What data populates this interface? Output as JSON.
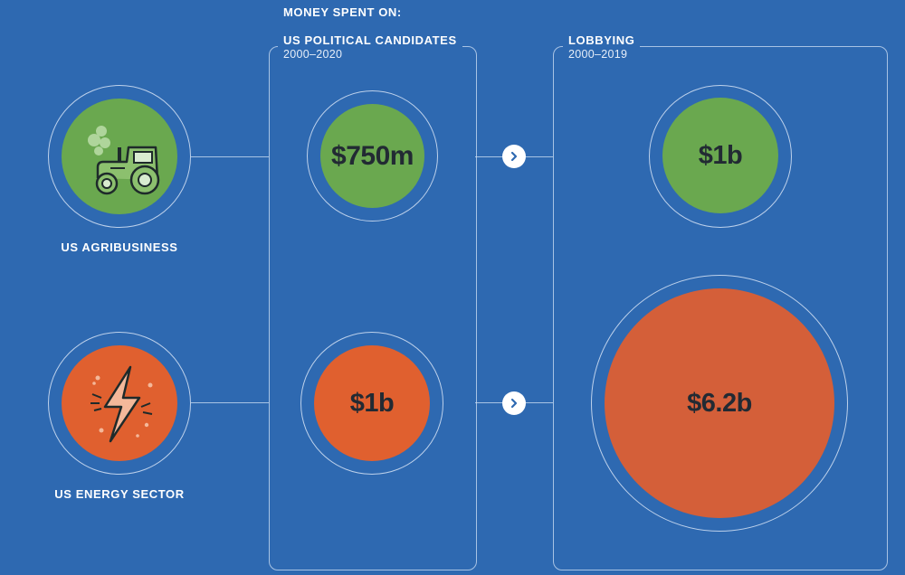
{
  "header": {
    "title": "MONEY SPENT ON:"
  },
  "columns": {
    "political": {
      "title": "US POLITICAL CANDIDATES",
      "period": "2000–2020"
    },
    "lobbying": {
      "title": "LOBBYING",
      "period": "2000–2019"
    }
  },
  "sectors": [
    {
      "label": "US AGRIBUSINESS",
      "icon": "tractor-icon",
      "political_spend": "$750m",
      "lobbying_spend": "$1b",
      "color": "#6aa84f"
    },
    {
      "label": "US ENERGY SECTOR",
      "icon": "lightning-bolt-icon",
      "political_spend": "$1b",
      "lobbying_spend": "$6.2b",
      "color": "#e0602f"
    }
  ],
  "colors": {
    "background": "#2e69b1",
    "green": "#6aa84f",
    "orange": "#e0602f",
    "text_dark": "#222a33"
  }
}
